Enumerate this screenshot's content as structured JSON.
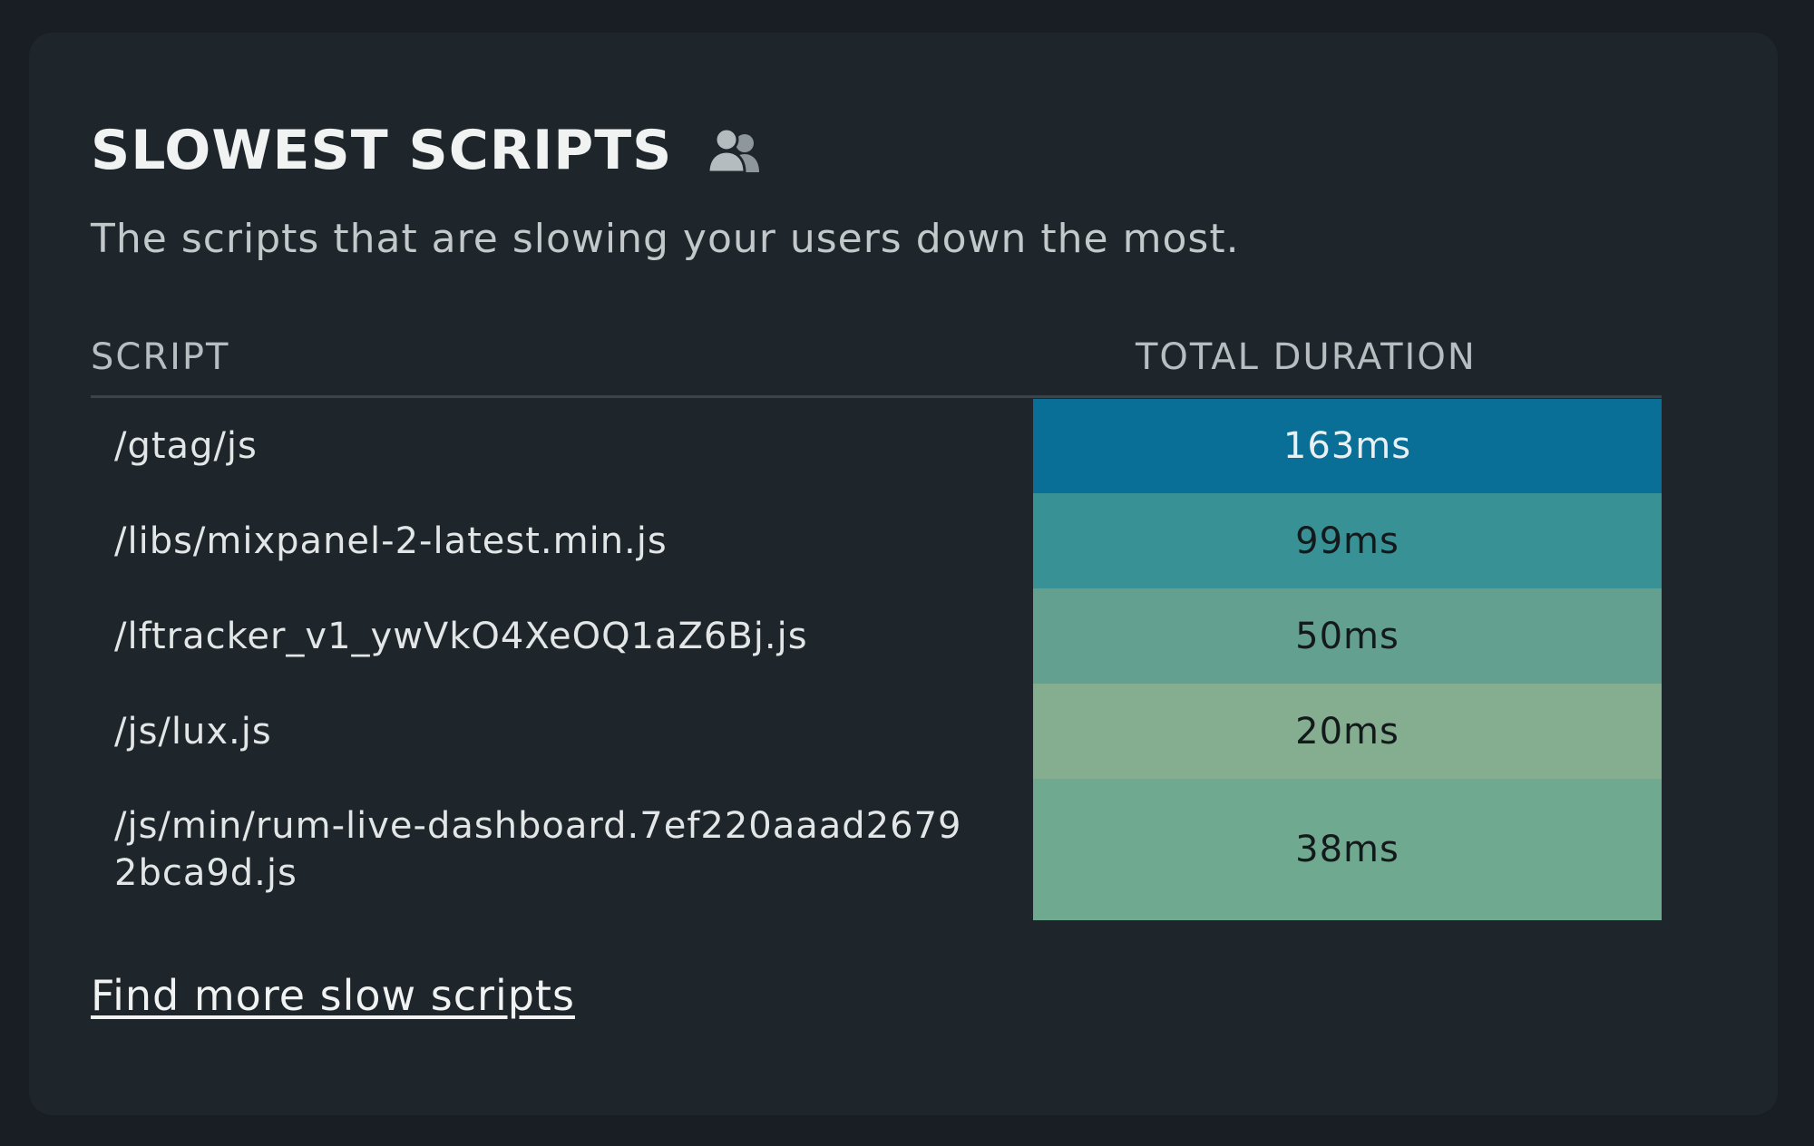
{
  "widget": {
    "title": "SLOWEST SCRIPTS",
    "title_icon": "users-icon",
    "subtitle": "The scripts that are slowing your users down the most.",
    "columns": {
      "script": "SCRIPT",
      "duration": "TOTAL DURATION"
    },
    "rows": [
      {
        "script": "/gtag/js",
        "duration": "163ms",
        "color": "#0a6f97",
        "text_color": "#e8f0f3"
      },
      {
        "script": "/libs/mixpanel-2-latest.min.js",
        "duration": "99ms",
        "color": "#379195",
        "text_color": "#14191c"
      },
      {
        "script": "/lftracker_v1_ywVkO4XeOQ1aZ6Bj.js",
        "duration": "50ms",
        "color": "#63a08f",
        "text_color": "#14191c"
      },
      {
        "script": "/js/lux.js",
        "duration": "20ms",
        "color": "#84ae8f",
        "text_color": "#14191c"
      },
      {
        "script": "/js/min/rum-live-dashboard.7ef220aaad26792bca9d.js",
        "duration": "38ms",
        "color": "#6fa990",
        "text_color": "#14191c"
      }
    ],
    "link": "Find more slow scripts"
  }
}
